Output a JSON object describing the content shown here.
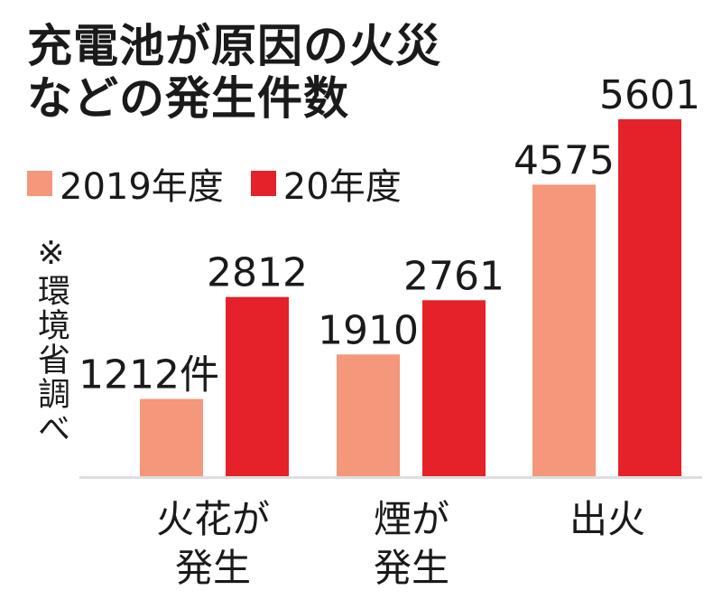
{
  "title_lines": [
    "充電池が原因の火災",
    "などの発生件数"
  ],
  "note": "※環境省調べ",
  "colors": {
    "series_2019": "#f4977a",
    "series_2020": "#e52129",
    "axis": "#dedede",
    "text": "#1a1a1a"
  },
  "chart_data": {
    "type": "bar",
    "title": "充電池が原因の火災などの発生件数",
    "categories": [
      "火花が発生",
      "煙が発生",
      "出火"
    ],
    "category_lines": [
      [
        "火花が",
        "発生"
      ],
      [
        "煙が",
        "発生"
      ],
      [
        "出火"
      ]
    ],
    "series": [
      {
        "name": "2019年度",
        "values": [
          1212,
          1910,
          4575
        ],
        "labels": [
          "1212件",
          "1910",
          "4575"
        ]
      },
      {
        "name": "20年度",
        "values": [
          2812,
          2761,
          5601
        ],
        "labels": [
          "2812",
          "2761",
          "5601"
        ]
      }
    ],
    "ylim": [
      0,
      6000
    ],
    "grid": false,
    "legend_position": "top-left",
    "xlabel": "",
    "ylabel": ""
  }
}
